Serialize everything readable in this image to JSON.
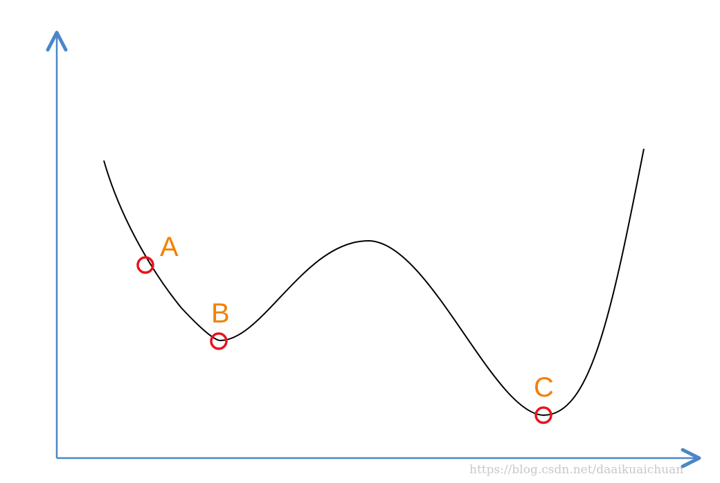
{
  "diagram": {
    "points": [
      {
        "label": "A"
      },
      {
        "label": "B"
      },
      {
        "label": "C"
      }
    ],
    "watermark": "https://blog.csdn.net/daaikuaichuan"
  },
  "colors": {
    "axis": "#4a86c8",
    "curve": "#000000",
    "marker": "#e8131b",
    "label": "#f38000",
    "watermark": "#c8c8c8"
  }
}
